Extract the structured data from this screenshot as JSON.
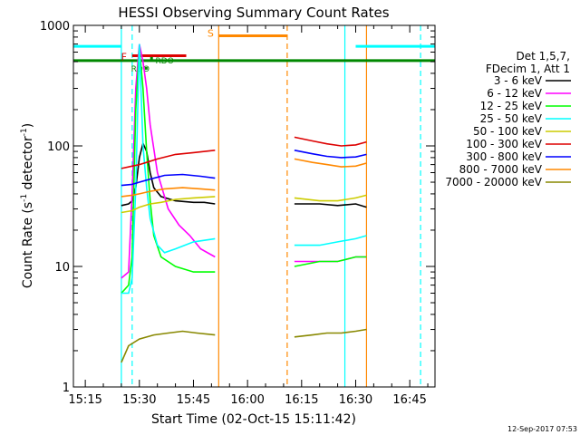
{
  "chart_data": {
    "type": "line",
    "title": "HESSI Observing Summary Count Rates",
    "xlabel": "Start Time (02-Oct-15 15:11:42)",
    "ylabel_main": "Count Rate (s",
    "ylabel_sup1": "-1",
    "ylabel_mid": " detector",
    "ylabel_sup2": "-1",
    "ylabel_end": ")",
    "yscale": "log",
    "ylim": [
      1,
      1000
    ],
    "xlim": [
      "15:11:42",
      "16:52:00"
    ],
    "x_ticks": [
      "15:15",
      "15:30",
      "15:45",
      "16:00",
      "16:15",
      "16:30",
      "16:45"
    ],
    "y_ticks": [
      {
        "value": 1,
        "label": "1"
      },
      {
        "value": 10,
        "label": "10"
      },
      {
        "value": 100,
        "label": "100"
      },
      {
        "value": 1000,
        "label": "1000"
      }
    ],
    "legend": {
      "placement": "right",
      "header": [
        "Det 1,5,7,",
        "FDecim 1, Att 1"
      ],
      "entries": [
        {
          "label": "3 - 6 keV",
          "color": "#000000"
        },
        {
          "label": "6 - 12 keV",
          "color": "#ff00ff"
        },
        {
          "label": "12 - 25 keV",
          "color": "#00ff00"
        },
        {
          "label": "25 - 50 keV",
          "color": "#00ffff"
        },
        {
          "label": "50 - 100 keV",
          "color": "#cccc00"
        },
        {
          "label": "100 - 300 keV",
          "color": "#dd0000"
        },
        {
          "label": "300 - 800 keV",
          "color": "#0000ff"
        },
        {
          "label": "800 - 7000 keV",
          "color": "#ff8800"
        },
        {
          "label": "7000 - 20000 keV",
          "color": "#888800"
        }
      ]
    },
    "annotations": {
      "flare_label": "F",
      "flare_color": "#dd0000",
      "flare_span": [
        "15:28",
        "15:43"
      ],
      "flare_level": 560,
      "saa_label": "S",
      "saa_color": "#ff8800",
      "saa_span": [
        "15:52",
        "16:11"
      ],
      "saa_level": 820,
      "night_color": "#00ffff",
      "night_spans": [
        [
          "15:11:42",
          "15:25"
        ],
        [
          "16:30",
          "16:52"
        ]
      ],
      "night_level": 670,
      "rdo_labels": [
        "RDO",
        "RDO"
      ],
      "rdo_color": "#008800",
      "rdo_line_level": 510,
      "vlines": [
        {
          "time": "15:25",
          "color": "#00ffff",
          "dashed": false
        },
        {
          "time": "15:28",
          "color": "#00ffff",
          "dashed": true
        },
        {
          "time": "15:52",
          "color": "#ff8800",
          "dashed": false
        },
        {
          "time": "16:11",
          "color": "#ff8800",
          "dashed": true
        },
        {
          "time": "16:27",
          "color": "#00ffff",
          "dashed": false
        },
        {
          "time": "16:33",
          "color": "#ff8800",
          "dashed": false
        },
        {
          "time": "16:48",
          "color": "#00ffff",
          "dashed": true
        }
      ]
    },
    "series": [
      {
        "name": "3 - 6 keV",
        "color": "#000000",
        "segments": [
          {
            "x": [
              "15:25",
              "15:27",
              "15:28",
              "15:29",
              "15:30",
              "15:31",
              "15:32",
              "15:33",
              "15:34",
              "15:36",
              "15:40",
              "15:45",
              "15:48",
              "15:51"
            ],
            "y": [
              32,
              33,
              35,
              45,
              80,
              105,
              90,
              60,
              45,
              38,
              35,
              34,
              34,
              33
            ]
          },
          {
            "x": [
              "16:13",
              "16:20",
              "16:25",
              "16:30",
              "16:33"
            ],
            "y": [
              33,
              33,
              32,
              33,
              31
            ]
          }
        ]
      },
      {
        "name": "6 - 12 keV",
        "color": "#ff00ff",
        "segments": [
          {
            "x": [
              "15:25",
              "15:27",
              "15:28",
              "15:29",
              "15:30",
              "15:31",
              "15:32",
              "15:33",
              "15:35",
              "15:38",
              "15:41",
              "15:44",
              "15:47",
              "15:51"
            ],
            "y": [
              8,
              9,
              40,
              300,
              700,
              500,
              300,
              150,
              60,
              30,
              22,
              18,
              14,
              12
            ]
          },
          {
            "x": [
              "16:13",
              "16:20",
              "16:25",
              "16:30",
              "16:33"
            ],
            "y": [
              11,
              11,
              11,
              12,
              12
            ]
          }
        ]
      },
      {
        "name": "12 - 25 keV",
        "color": "#00ff00",
        "segments": [
          {
            "x": [
              "15:25",
              "15:27",
              "15:28",
              "15:29",
              "15:30",
              "15:31",
              "15:32",
              "15:33",
              "15:34",
              "15:36",
              "15:40",
              "15:45",
              "15:51"
            ],
            "y": [
              6,
              7,
              12,
              200,
              650,
              300,
              90,
              35,
              18,
              12,
              10,
              9,
              9
            ]
          },
          {
            "x": [
              "16:13",
              "16:20",
              "16:25",
              "16:30",
              "16:33"
            ],
            "y": [
              10,
              11,
              11,
              12,
              12
            ]
          }
        ]
      },
      {
        "name": "25 - 50 keV",
        "color": "#00ffff",
        "segments": [
          {
            "x": [
              "15:25",
              "15:27",
              "15:28",
              "15:29",
              "15:30",
              "15:31",
              "15:32",
              "15:33",
              "15:35",
              "15:37",
              "15:40",
              "15:45",
              "15:51"
            ],
            "y": [
              6,
              6,
              8,
              45,
              700,
              100,
              45,
              25,
              15,
              13,
              14,
              16,
              17
            ]
          },
          {
            "x": [
              "16:13",
              "16:20",
              "16:25",
              "16:30",
              "16:33"
            ],
            "y": [
              15,
              15,
              16,
              17,
              18
            ]
          }
        ]
      },
      {
        "name": "50 - 100 keV",
        "color": "#cccc00",
        "segments": [
          {
            "x": [
              "15:25",
              "15:28",
              "15:30",
              "15:33",
              "15:36",
              "15:40",
              "15:45",
              "15:51"
            ],
            "y": [
              28,
              29,
              31,
              33,
              34,
              36,
              37,
              38
            ]
          },
          {
            "x": [
              "16:13",
              "16:20",
              "16:25",
              "16:30",
              "16:33"
            ],
            "y": [
              37,
              35,
              35,
              37,
              39
            ]
          }
        ]
      },
      {
        "name": "100 - 300 keV",
        "color": "#dd0000",
        "segments": [
          {
            "x": [
              "15:25",
              "15:28",
              "15:30",
              "15:32",
              "15:35",
              "15:40",
              "15:45",
              "15:51"
            ],
            "y": [
              65,
              68,
              70,
              73,
              78,
              85,
              88,
              92
            ]
          },
          {
            "x": [
              "16:13",
              "16:18",
              "16:22",
              "16:26",
              "16:30",
              "16:33"
            ],
            "y": [
              118,
              110,
              104,
              100,
              102,
              108
            ]
          }
        ]
      },
      {
        "name": "300 - 800 keV",
        "color": "#0000ff",
        "segments": [
          {
            "x": [
              "15:25",
              "15:28",
              "15:30",
              "15:33",
              "15:37",
              "15:42",
              "15:47",
              "15:51"
            ],
            "y": [
              47,
              48,
              50,
              53,
              57,
              58,
              56,
              54
            ]
          },
          {
            "x": [
              "16:13",
              "16:18",
              "16:22",
              "16:26",
              "16:30",
              "16:33"
            ],
            "y": [
              92,
              86,
              82,
              80,
              81,
              85
            ]
          }
        ]
      },
      {
        "name": "800 - 7000 keV",
        "color": "#ff8800",
        "segments": [
          {
            "x": [
              "15:25",
              "15:28",
              "15:30",
              "15:33",
              "15:37",
              "15:42",
              "15:47",
              "15:51"
            ],
            "y": [
              38,
              39,
              40,
              42,
              44,
              45,
              44,
              43
            ]
          },
          {
            "x": [
              "16:13",
              "16:18",
              "16:22",
              "16:26",
              "16:30",
              "16:33"
            ],
            "y": [
              78,
              73,
              70,
              67,
              68,
              72
            ]
          }
        ]
      },
      {
        "name": "7000 - 20000 keV",
        "color": "#888800",
        "segments": [
          {
            "x": [
              "15:25",
              "15:27",
              "15:30",
              "15:34",
              "15:38",
              "15:42",
              "15:46",
              "15:51"
            ],
            "y": [
              1.6,
              2.2,
              2.5,
              2.7,
              2.8,
              2.9,
              2.8,
              2.7
            ]
          },
          {
            "x": [
              "16:13",
              "16:18",
              "16:22",
              "16:26",
              "16:30",
              "16:33"
            ],
            "y": [
              2.6,
              2.7,
              2.8,
              2.8,
              2.9,
              3.0
            ]
          }
        ]
      }
    ]
  },
  "footer": {
    "timestamp": "12-Sep-2017 07:53"
  }
}
